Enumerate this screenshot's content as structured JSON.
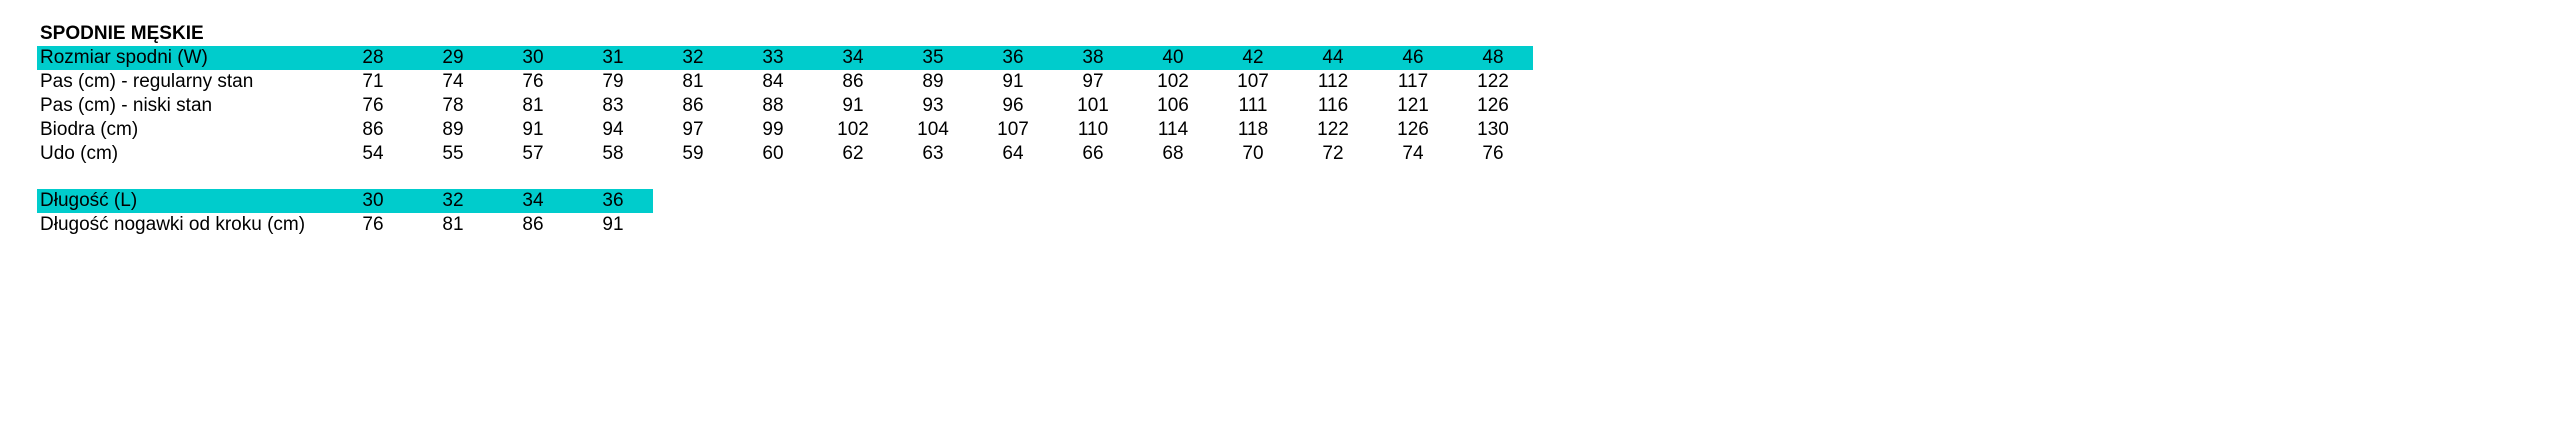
{
  "title": "SPODNIE MĘSKIE",
  "accent_color": "#00cccc",
  "waist_table": {
    "header": {
      "label": "Rozmiar spodni (W)",
      "values": [
        "28",
        "29",
        "30",
        "31",
        "32",
        "33",
        "34",
        "35",
        "36",
        "38",
        "40",
        "42",
        "44",
        "46",
        "48"
      ]
    },
    "rows": [
      {
        "label": "Pas (cm) - regularny stan",
        "values": [
          "71",
          "74",
          "76",
          "79",
          "81",
          "84",
          "86",
          "89",
          "91",
          "97",
          "102",
          "107",
          "112",
          "117",
          "122"
        ]
      },
      {
        "label": "Pas (cm) - niski stan",
        "values": [
          "76",
          "78",
          "81",
          "83",
          "86",
          "88",
          "91",
          "93",
          "96",
          "101",
          "106",
          "111",
          "116",
          "121",
          "126"
        ]
      },
      {
        "label": "Biodra (cm)",
        "values": [
          "86",
          "89",
          "91",
          "94",
          "97",
          "99",
          "102",
          "104",
          "107",
          "110",
          "114",
          "118",
          "122",
          "126",
          "130"
        ]
      },
      {
        "label": "Udo (cm)",
        "values": [
          "54",
          "55",
          "57",
          "58",
          "59",
          "60",
          "62",
          "63",
          "64",
          "66",
          "68",
          "70",
          "72",
          "74",
          "76"
        ]
      }
    ]
  },
  "length_table": {
    "header": {
      "label": "Długość (L)",
      "values": [
        "30",
        "32",
        "34",
        "36"
      ]
    },
    "rows": [
      {
        "label": "Długość nogawki od kroku (cm)",
        "values": [
          "76",
          "81",
          "86",
          "91"
        ]
      }
    ]
  }
}
